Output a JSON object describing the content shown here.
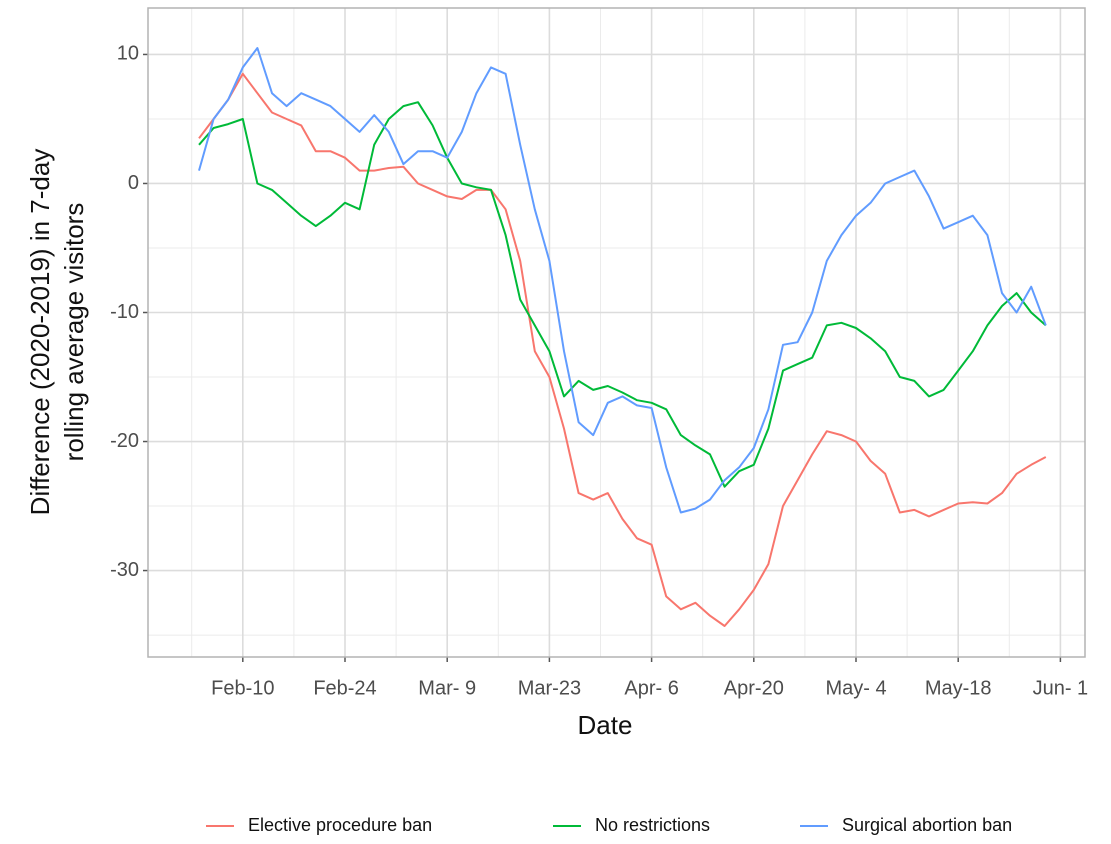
{
  "chart_data": {
    "type": "line",
    "xlabel": "Date",
    "ylabel": [
      "Difference (2020-2019) in 7-day",
      "rolling average visitors"
    ],
    "categories": [
      null,
      null,
      null,
      "Feb-10",
      null,
      null,
      null,
      null,
      null,
      null,
      "Feb-24",
      null,
      null,
      null,
      null,
      null,
      null,
      "Mar- 9",
      null,
      null,
      null,
      null,
      null,
      null,
      "Mar-23",
      null,
      null,
      null,
      null,
      null,
      null,
      "Apr- 6",
      null,
      null,
      null,
      null,
      null,
      null,
      "Apr-20",
      null,
      null,
      null,
      null,
      null,
      null,
      "May- 4",
      null,
      null,
      null,
      null,
      null,
      null,
      "May-18",
      null,
      null,
      null,
      null,
      null,
      null,
      "Jun- 1"
    ],
    "ylim": [
      -36.7,
      13.6
    ],
    "yticks": [
      -30,
      -20,
      -10,
      0,
      10
    ],
    "grid": true,
    "legend": "bottom",
    "series": [
      {
        "name": "Elective procedure ban",
        "color": "#F8766D",
        "values": [
          3.5,
          5,
          6.5,
          8.5,
          7,
          5.5,
          5,
          4.5,
          2.5,
          2.5,
          2,
          1,
          1,
          1.2,
          1.3,
          0,
          -0.5,
          -1,
          -1.2,
          -0.5,
          -0.5,
          -2,
          -6,
          -13,
          -15,
          -19,
          -24,
          -24.5,
          -24,
          -26,
          -27.5,
          -28,
          -32,
          -33,
          -32.5,
          -33.5,
          -34.3,
          -33,
          -31.5,
          -29.5,
          -25,
          -23,
          -21,
          -19.2,
          -19.5,
          -20,
          -21.5,
          -22.5,
          -25.5,
          -25.3,
          -25.8,
          -25.3,
          -24.8,
          -24.7,
          -24.8,
          -24,
          -22.5,
          -21.8,
          -21.2,
          null
        ]
      },
      {
        "name": "No restrictions",
        "color": "#00BA38",
        "values": [
          3,
          4.3,
          4.6,
          5,
          0,
          -0.5,
          -1.5,
          -2.5,
          -3.3,
          -2.5,
          -1.5,
          -2,
          3,
          5,
          6,
          6.3,
          4.5,
          2,
          0,
          -0.3,
          -0.5,
          -4,
          -9,
          -11,
          -13,
          -16.5,
          -15.3,
          -16,
          -15.7,
          -16.2,
          -16.8,
          -17,
          -17.5,
          -19.5,
          -20.3,
          -21,
          -23.5,
          -22.3,
          -21.8,
          -19,
          -14.5,
          -14,
          -13.5,
          -11,
          -10.8,
          -11.2,
          -12,
          -13,
          -15,
          -15.3,
          -16.5,
          -16,
          -14.5,
          -13,
          -11,
          -9.5,
          -8.5,
          -10,
          -11,
          null
        ]
      },
      {
        "name": "Surgical abortion ban",
        "color": "#619CFF",
        "values": [
          1,
          5,
          6.5,
          9,
          10.5,
          7,
          6,
          7,
          6.5,
          6,
          5,
          4,
          5.3,
          4,
          1.5,
          2.5,
          2.5,
          2,
          4,
          7,
          9,
          8.5,
          3,
          -2,
          -6,
          -13,
          -18.5,
          -19.5,
          -17,
          -16.5,
          -17.2,
          -17.4,
          -22,
          -25.5,
          -25.2,
          -24.5,
          -23,
          -22,
          -20.5,
          -17.5,
          -12.5,
          -12.3,
          -10,
          -6,
          -4,
          -2.5,
          -1.5,
          0,
          0.5,
          1,
          -1,
          -3.5,
          -3,
          -2.5,
          -4,
          -8.5,
          -10,
          -8,
          -11,
          null
        ]
      }
    ]
  }
}
